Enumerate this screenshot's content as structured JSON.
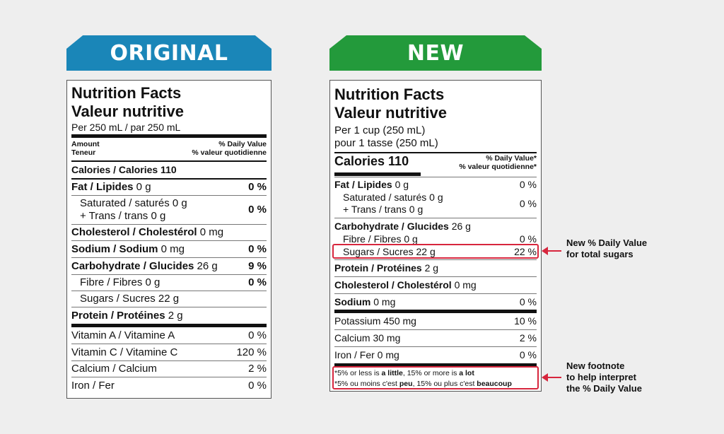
{
  "colors": {
    "original_banner": "#1a86b8",
    "new_banner": "#239a3b",
    "highlight": "#d7263d"
  },
  "original": {
    "banner": "ORIGINAL",
    "title_en": "Nutrition Facts",
    "title_fr": "Valeur nutritive",
    "serving": "Per 250 mL  / par 250 mL",
    "amount_en": "Amount",
    "amount_fr": "Teneur",
    "dv_en": "% Daily Value",
    "dv_fr": "% valeur quotidienne",
    "calories": "Calories / Calories 110",
    "rows": [
      {
        "label_bold": "Fat / Lipides",
        "amount": " 0 g",
        "dv": "0 %"
      },
      {
        "label1": "Saturated / saturés 0 g",
        "label2": "+ Trans / trans 0 g",
        "dv": "0 %"
      },
      {
        "label_bold": "Cholesterol / Cholestérol",
        "amount": " 0 mg",
        "dv": ""
      },
      {
        "label_bold": "Sodium / Sodium",
        "amount": " 0 mg",
        "dv": "0 %"
      },
      {
        "label_bold": "Carbohydrate / Glucides",
        "amount": " 26 g",
        "dv": "9 %"
      },
      {
        "label": "Fibre / Fibres 0 g",
        "dv": "0 %"
      },
      {
        "label": "Sugars / Sucres 22 g",
        "dv": ""
      },
      {
        "label_bold": "Protein / Protéines",
        "amount": " 2 g",
        "dv": ""
      }
    ],
    "vitamins": [
      {
        "label": "Vitamin A / Vitamine A",
        "dv": "0 %"
      },
      {
        "label": "Vitamin C / Vitamine C",
        "dv": "120 %"
      },
      {
        "label": "Calcium / Calcium",
        "dv": "2 %"
      },
      {
        "label": "Iron / Fer",
        "dv": "0 %"
      }
    ]
  },
  "new": {
    "banner": "NEW",
    "title_en": "Nutrition Facts",
    "title_fr": "Valeur nutritive",
    "serving1": "Per 1 cup (250 mL)",
    "serving2": "pour 1 tasse (250 mL)",
    "calories": "Calories 110",
    "dv_en": "% Daily Value*",
    "dv_fr": "% valeur quotidienne*",
    "fat": {
      "label_bold": "Fat / Lipides",
      "amount": " 0 g",
      "dv": "0 %"
    },
    "sat1": "Saturated / saturés 0 g",
    "sat2": "+ Trans / trans 0 g",
    "sat_dv": "0 %",
    "carb": {
      "label_bold": "Carbohydrate / Glucides",
      "amount": " 26 g"
    },
    "fibre": {
      "label": "Fibre / Fibres 0 g",
      "dv": "0 %"
    },
    "sugars": {
      "label": "Sugars / Sucres 22 g",
      "dv": "22 %"
    },
    "protein": {
      "label_bold": "Protein / Protéines",
      "amount": " 2 g"
    },
    "cholesterol": {
      "label_bold": "Cholesterol / Cholestérol",
      "amount": " 0 mg"
    },
    "sodium": {
      "label_bold": "Sodium",
      "amount": " 0 mg",
      "dv": "0 %"
    },
    "potassium": {
      "label": "Potassium 450 mg",
      "dv": "10 %"
    },
    "calcium": {
      "label": "Calcium 30 mg",
      "dv": "2 %"
    },
    "iron": {
      "label": "Iron / Fer 0 mg",
      "dv": "0 %"
    },
    "footnote_en": {
      "p1": "*5% or less is ",
      "b1": "a little",
      "p2": ", 15% or more is ",
      "b2": "a lot"
    },
    "footnote_fr": {
      "p1": "*5% ou moins c'est ",
      "b1": "peu",
      "p2": ", 15% ou plus c'est ",
      "b2": "beaucoup"
    }
  },
  "callouts": {
    "sugars_line1": "New % Daily Value",
    "sugars_line2": "for total sugars",
    "foot_line1": "New footnote",
    "foot_line2": "to help interpret",
    "foot_line3": "the % Daily Value"
  }
}
